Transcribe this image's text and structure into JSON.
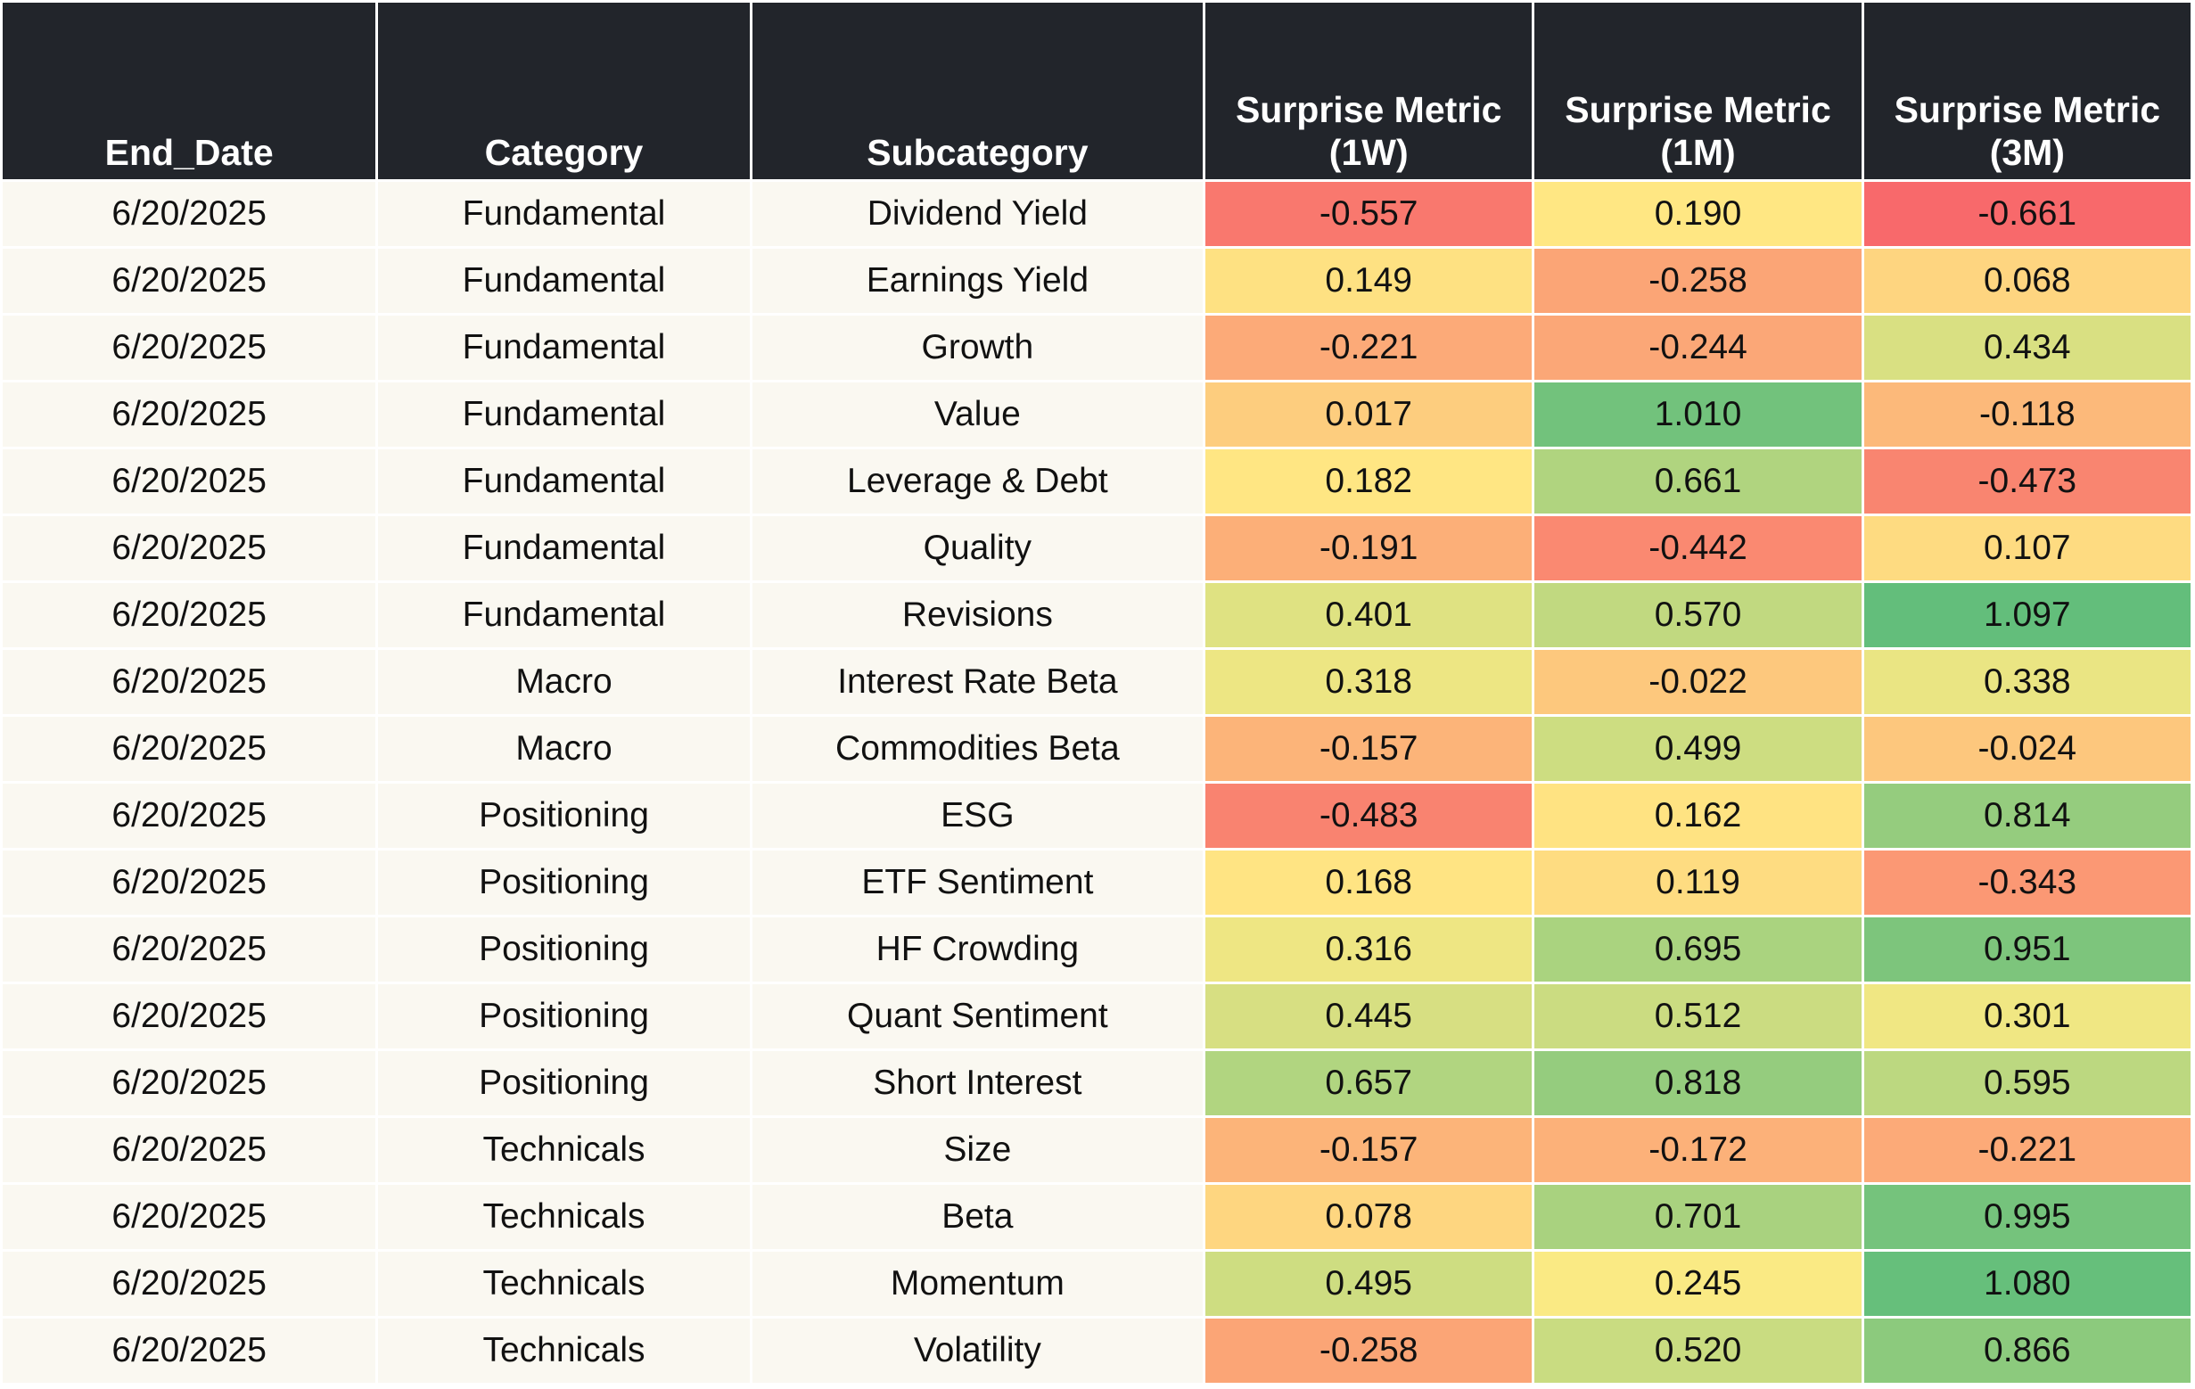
{
  "chart_data": {
    "type": "table",
    "columns": [
      "End_Date",
      "Category",
      "Subcategory",
      "Surprise Metric\n(1W)",
      "Surprise Metric\n(1M)",
      "Surprise Metric\n(3M)"
    ],
    "rows": [
      [
        "6/20/2025",
        "Fundamental",
        "Dividend Yield",
        "-0.557",
        "0.190",
        "-0.661"
      ],
      [
        "6/20/2025",
        "Fundamental",
        "Earnings Yield",
        "0.149",
        "-0.258",
        "0.068"
      ],
      [
        "6/20/2025",
        "Fundamental",
        "Growth",
        "-0.221",
        "-0.244",
        "0.434"
      ],
      [
        "6/20/2025",
        "Fundamental",
        "Value",
        "0.017",
        "1.010",
        "-0.118"
      ],
      [
        "6/20/2025",
        "Fundamental",
        "Leverage & Debt",
        "0.182",
        "0.661",
        "-0.473"
      ],
      [
        "6/20/2025",
        "Fundamental",
        "Quality",
        "-0.191",
        "-0.442",
        "0.107"
      ],
      [
        "6/20/2025",
        "Fundamental",
        "Revisions",
        "0.401",
        "0.570",
        "1.097"
      ],
      [
        "6/20/2025",
        "Macro",
        "Interest Rate Beta",
        "0.318",
        "-0.022",
        "0.338"
      ],
      [
        "6/20/2025",
        "Macro",
        "Commodities Beta",
        "-0.157",
        "0.499",
        "-0.024"
      ],
      [
        "6/20/2025",
        "Positioning",
        "ESG",
        "-0.483",
        "0.162",
        "0.814"
      ],
      [
        "6/20/2025",
        "Positioning",
        "ETF Sentiment",
        "0.168",
        "0.119",
        "-0.343"
      ],
      [
        "6/20/2025",
        "Positioning",
        "HF Crowding",
        "0.316",
        "0.695",
        "0.951"
      ],
      [
        "6/20/2025",
        "Positioning",
        "Quant Sentiment",
        "0.445",
        "0.512",
        "0.301"
      ],
      [
        "6/20/2025",
        "Positioning",
        "Short Interest",
        "0.657",
        "0.818",
        "0.595"
      ],
      [
        "6/20/2025",
        "Technicals",
        "Size",
        "-0.157",
        "-0.172",
        "-0.221"
      ],
      [
        "6/20/2025",
        "Technicals",
        "Beta",
        "0.078",
        "0.701",
        "0.995"
      ],
      [
        "6/20/2025",
        "Technicals",
        "Momentum",
        "0.495",
        "0.245",
        "1.080"
      ],
      [
        "6/20/2025",
        "Technicals",
        "Volatility",
        "-0.258",
        "0.520",
        "0.866"
      ]
    ],
    "metric_columns": [
      3,
      4,
      5
    ],
    "color_scale": {
      "low_value": -0.661,
      "high_value": 1.097,
      "stops": [
        "#f8696b",
        "#ffeb84",
        "#63be7b"
      ]
    },
    "colors": {
      "header_bg": "#22252b",
      "header_text": "#ffffff",
      "row_bg": "#faf8f1",
      "cell_text": "#111111"
    }
  }
}
